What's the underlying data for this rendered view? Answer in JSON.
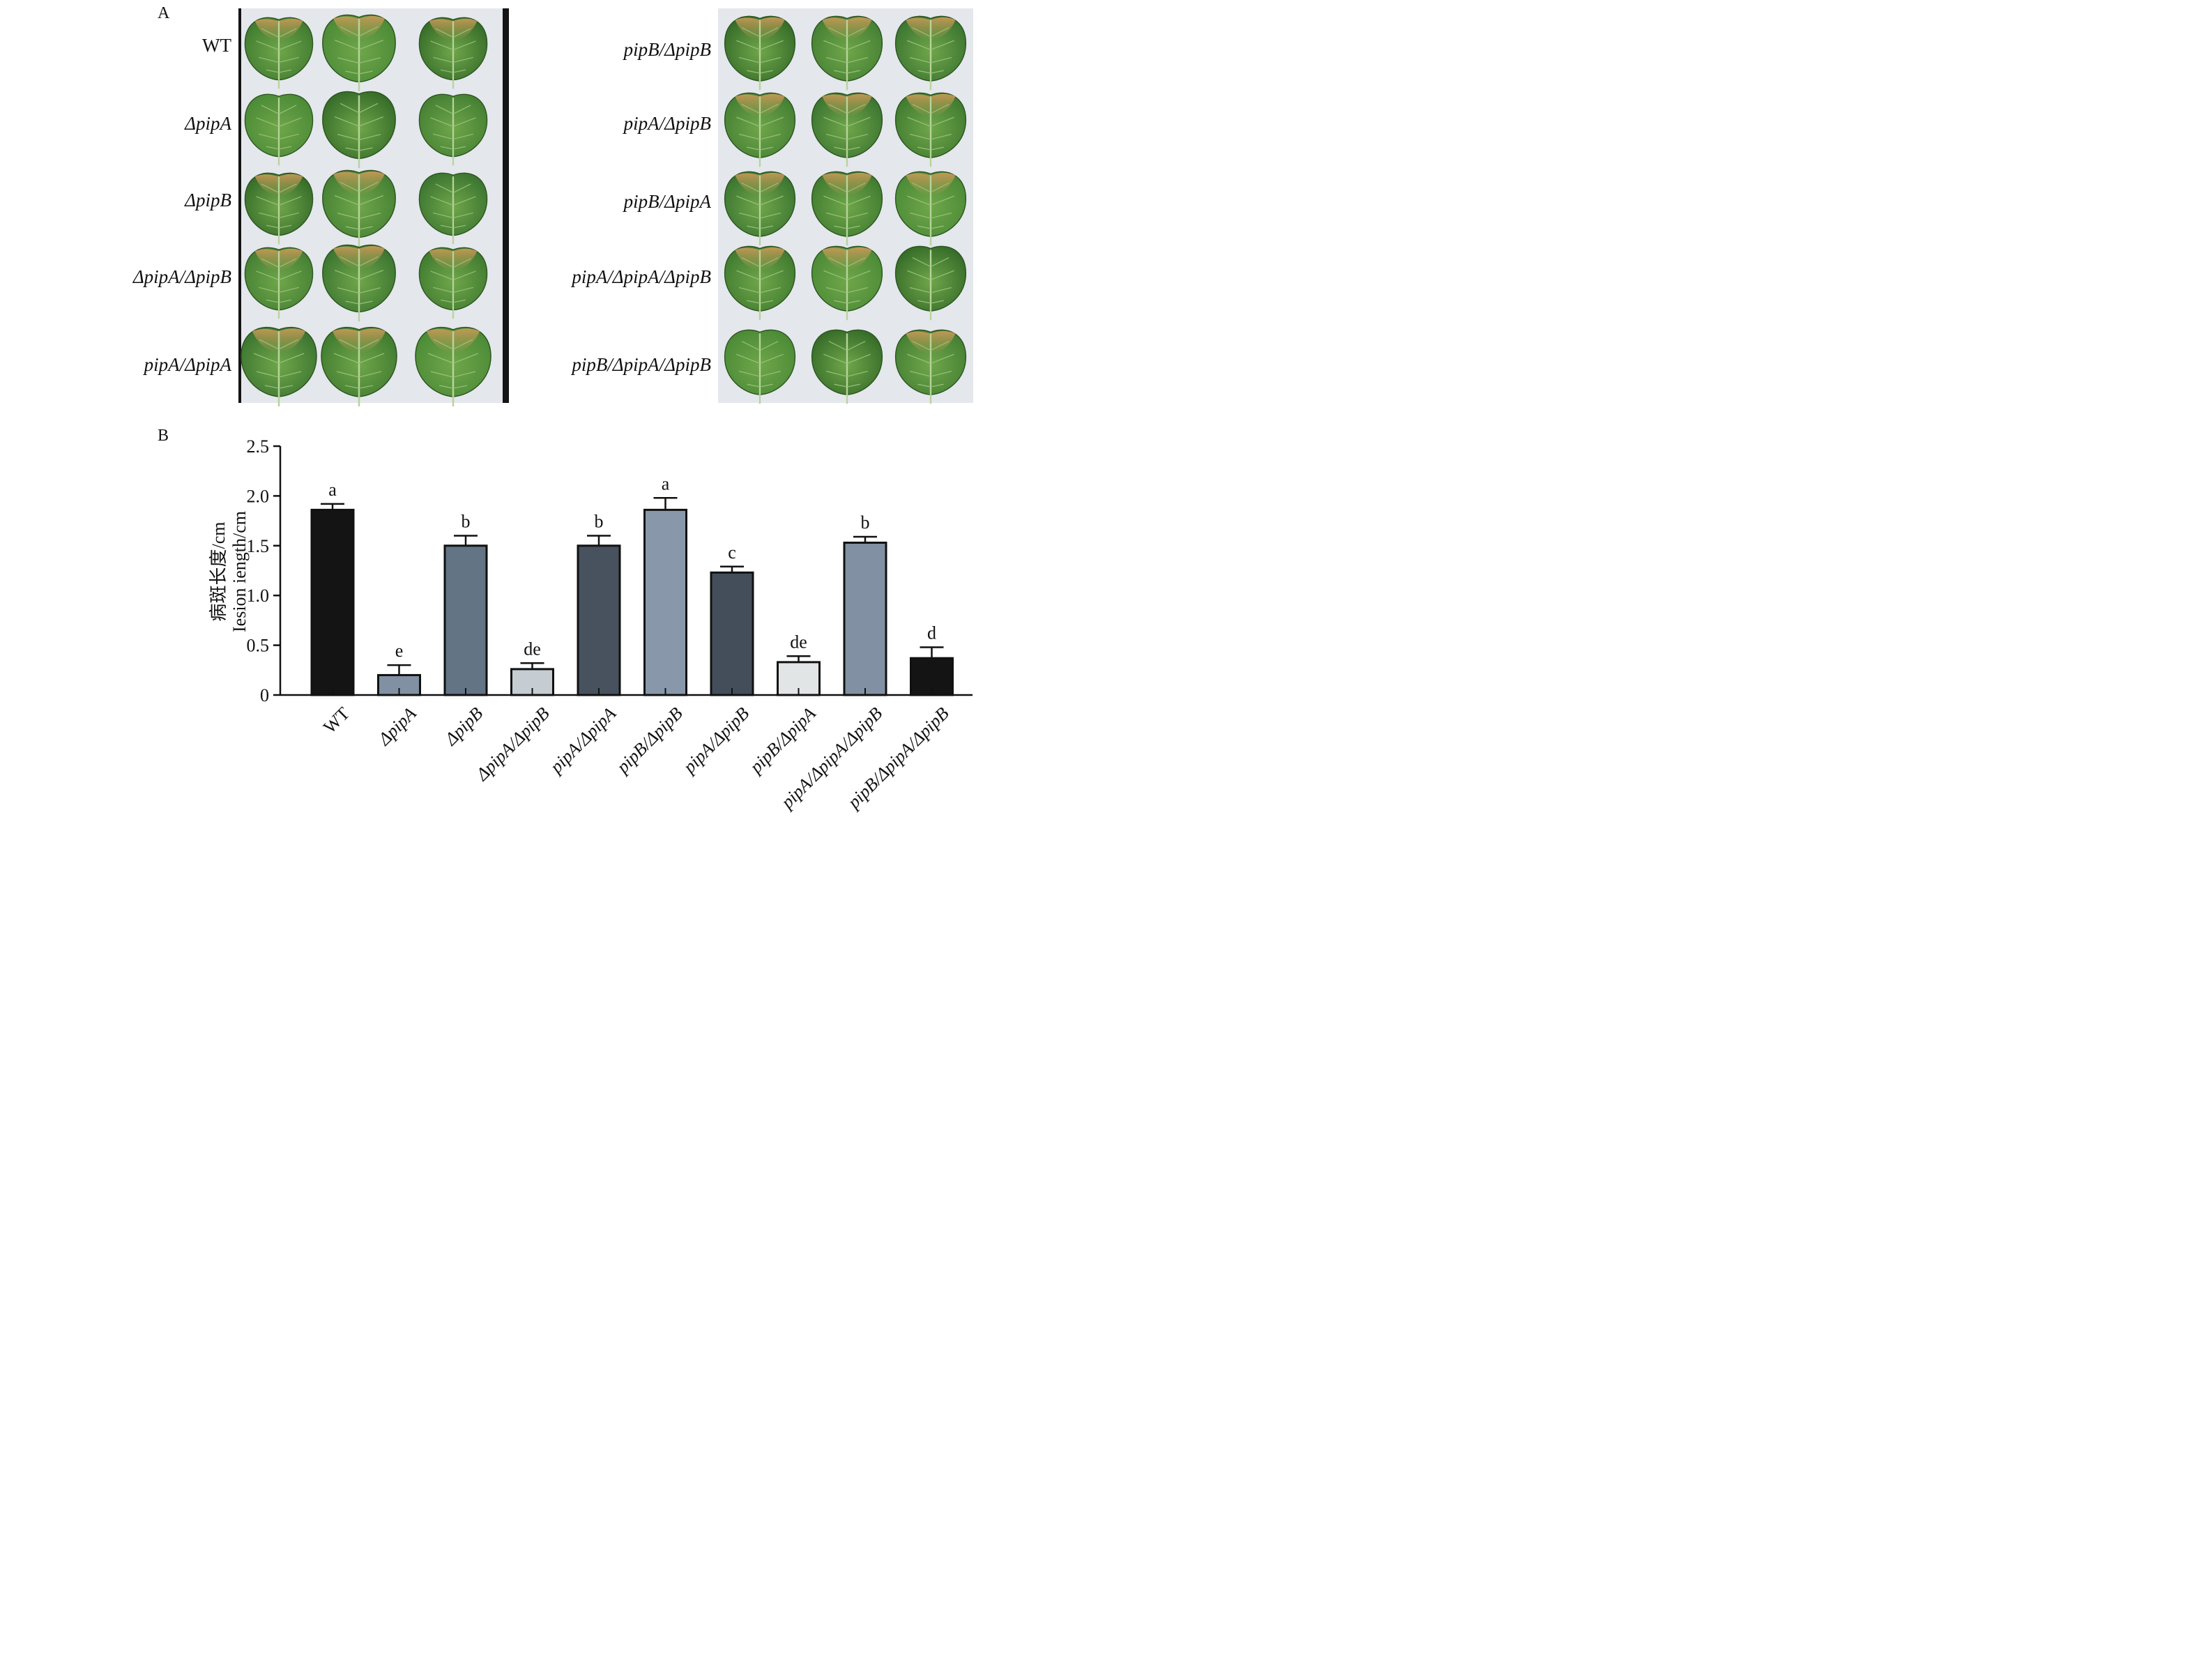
{
  "panel_a": {
    "label": "A",
    "left_rows": [
      "WT",
      "ΔpipA",
      "ΔpipB",
      "ΔpipA/ΔpipB",
      "pipA/ΔpipA"
    ],
    "right_rows": [
      "pipB/ΔpipB",
      "pipA/ΔpipB",
      "pipB/ΔpipA",
      "pipA/ΔpipA/ΔpipB",
      "pipB/ΔpipA/ΔpipB"
    ]
  },
  "panel_b": {
    "label": "B"
  },
  "chart_data": {
    "type": "bar",
    "categories": [
      "WT",
      "ΔpipA",
      "ΔpipB",
      "ΔpipA/ΔpipB",
      "pipA/ΔpipA",
      "pipB/ΔpipB",
      "pipA/ΔpipB",
      "pipB/ΔpipA",
      "pipA/ΔpipA/ΔpipB",
      "pipB/ΔpipA/ΔpipB"
    ],
    "values": [
      1.86,
      0.2,
      1.5,
      0.26,
      1.5,
      1.86,
      1.23,
      0.33,
      1.53,
      0.37
    ],
    "errors": [
      0.06,
      0.1,
      0.1,
      0.06,
      0.1,
      0.12,
      0.06,
      0.06,
      0.06,
      0.11
    ],
    "letters": [
      "a",
      "e",
      "b",
      "de",
      "b",
      "a",
      "c",
      "de",
      "b",
      "d"
    ],
    "bar_colors": [
      "#141414",
      "#8191a3",
      "#637485",
      "#c5cdd2",
      "#47525e",
      "#8898aa",
      "#444e5a",
      "#e1e5e6",
      "#8191a3",
      "#141414"
    ],
    "ylabel_cn": "病斑长度/cm",
    "ylabel_en": "Iesion iength/cm",
    "ylim": [
      0,
      2.5
    ],
    "yticks": [
      "0",
      "0.5",
      "1.0",
      "1.5",
      "2.0",
      "2.5"
    ],
    "grid": false
  }
}
